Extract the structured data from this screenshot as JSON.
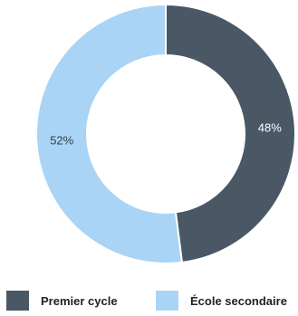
{
  "chart_data": {
    "type": "pie",
    "donut": true,
    "categories": [
      "Premier cycle",
      "École secondaire"
    ],
    "values": [
      48,
      52
    ],
    "value_labels": [
      "48%",
      "52%"
    ],
    "colors": [
      "#4a5866",
      "#aad4f5"
    ],
    "title": "",
    "legend_position": "bottom",
    "grid": false
  }
}
